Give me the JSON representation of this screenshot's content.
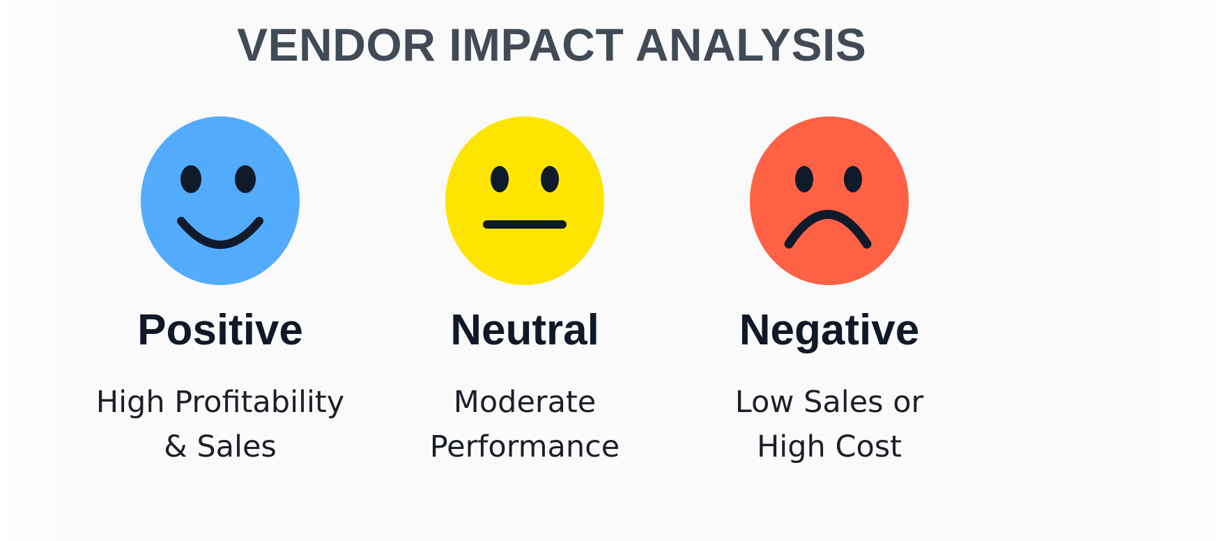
{
  "title": "VENDOR IMPACT ANALYSIS",
  "categories": [
    {
      "key": "positive",
      "label": "Positive",
      "description_line1": "High Profitability",
      "description_line2": "& Sales",
      "face_color": "#53abfb",
      "icon": "smiling-face-icon"
    },
    {
      "key": "neutral",
      "label": "Neutral",
      "description_line1": "Moderate",
      "description_line2": "Performance",
      "face_color": "#fde501",
      "icon": "neutral-face-icon"
    },
    {
      "key": "negative",
      "label": "Negative",
      "description_line1": "Low Sales or",
      "description_line2": "High Cost",
      "face_color": "#fe6144",
      "icon": "frowning-face-icon"
    }
  ],
  "colors": {
    "title": "#424a55",
    "feature_dark": "#0f1a2a",
    "label": "#111827",
    "text": "#1b1f27"
  }
}
